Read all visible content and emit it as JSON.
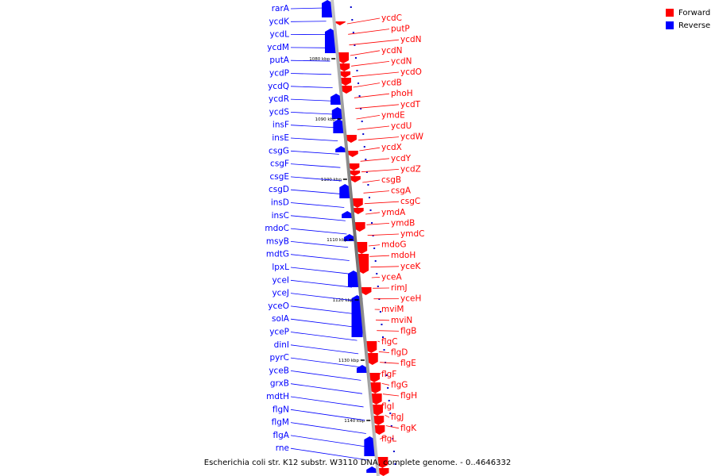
{
  "legend": {
    "forward_label": "Forward",
    "reverse_label": "Reverse",
    "forward_color": "#ff0000",
    "reverse_color": "#0000ff"
  },
  "footer": {
    "caption": "Escherichia coli str. K12 substr. W3110 DNA, complete genome. - 0..4646332"
  },
  "axis_ticks": [
    "1080 kbp",
    "1090 kbp",
    "1100 kbp",
    "1110 kbp",
    "1120 kbp",
    "1130 kbp",
    "1140 kbp"
  ],
  "reverse_labels": [
    "rarA",
    "ycdK",
    "ycdL",
    "ycdM",
    "putA",
    "ycdP",
    "ycdQ",
    "ycdR",
    "ycdS",
    "insF",
    "insE",
    "csgG",
    "csgF",
    "csgE",
    "csgD",
    "insD",
    "insC",
    "mdoC",
    "msyB",
    "mdtG",
    "lpxL",
    "yceI",
    "yceJ",
    "yceO",
    "solA",
    "yceP",
    "dinI",
    "pyrC",
    "yceB",
    "grxB",
    "mdtH",
    "flgN",
    "flgM",
    "flgA",
    "rne"
  ],
  "forward_labels": [
    "ycdC",
    "putP",
    "ycdN",
    "ycdN",
    "ycdN",
    "ycdO",
    "ycdB",
    "phoH",
    "ycdT",
    "ymdE",
    "ycdU",
    "ycdW",
    "ycdX",
    "ycdY",
    "ycdZ",
    "csgB",
    "csgA",
    "csgC",
    "ymdA",
    "ymdB",
    "ymdC",
    "mdoG",
    "mdoH",
    "yceK",
    "yceA",
    "rimJ",
    "yceH",
    "mviM",
    "mviN",
    "flgB",
    "flgC",
    "flgD",
    "flgE",
    "flgF",
    "flgG",
    "flgH",
    "flgI",
    "flgJ",
    "flgK",
    "flgL"
  ]
}
